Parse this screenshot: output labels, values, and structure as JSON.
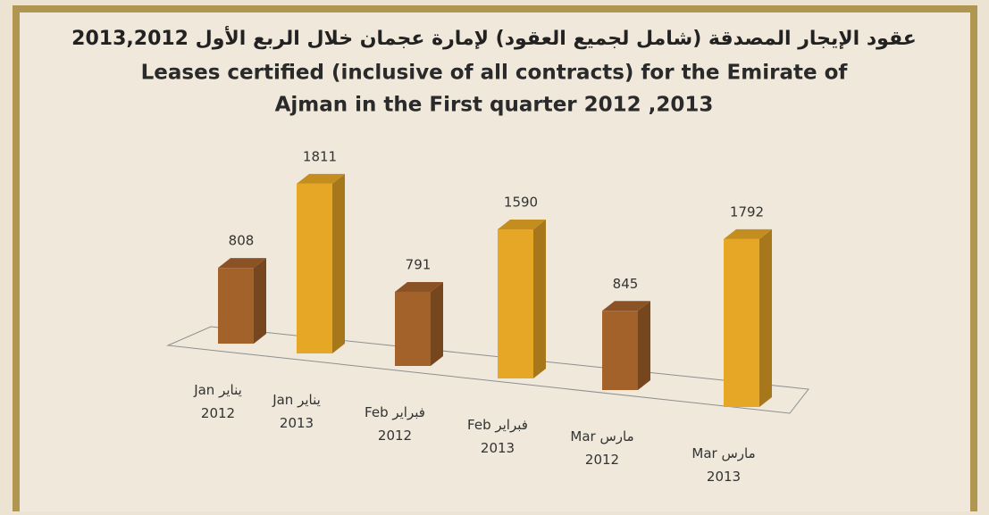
{
  "chart_data": {
    "type": "bar3d",
    "title": "عقود الإيجار المصدقة (شامل لجميع العقود) لإمارة عجمان خلال الربع الأول 2013,2012",
    "subtitle_lines": [
      "Leases certified (inclusive of all contracts) for the   Emirate of",
      "Ajman in the First quarter 2012 ,2013"
    ],
    "categories": [
      "Jan يناير 2012",
      "Jan يناير 2013",
      "Feb فبراير 2012",
      "Feb فبراير 2013",
      "Mar مارس 2012",
      "Mar مارس 2013"
    ],
    "values": [
      808,
      1811,
      791,
      1590,
      845,
      1792
    ],
    "colors": [
      "#a4622b",
      "#e6a626",
      "#a4622b",
      "#e6a626",
      "#a4622b",
      "#e6a626"
    ]
  }
}
